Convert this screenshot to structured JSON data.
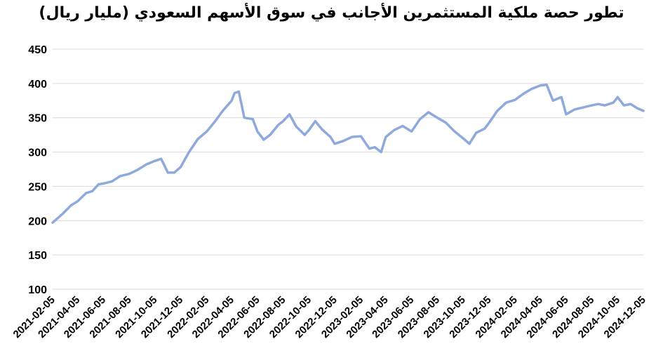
{
  "chart_data": {
    "type": "line",
    "title": "تطور حصة ملكية المستثمرين الأجانب في سوق الأسهم السعودي (مليار ريال)",
    "xlabel": "",
    "ylabel": "",
    "ylim": [
      100,
      450
    ],
    "yticks": [
      100,
      150,
      200,
      250,
      300,
      350,
      400,
      450
    ],
    "xticks": [
      "2021-02-05",
      "2021-04-05",
      "2021-06-05",
      "2021-08-05",
      "2021-10-05",
      "2021-12-05",
      "2022-02-05",
      "2022-04-05",
      "2022-06-05",
      "2022-08-05",
      "2022-10-05",
      "2022-12-05",
      "2023-02-05",
      "2023-04-05",
      "2023-06-05",
      "2023-08-05",
      "2023-10-05",
      "2023-12-05",
      "2024-02-05",
      "2024-04-05",
      "2024-06-05",
      "2024-08-05",
      "2024-10-05",
      "2024-12-05"
    ],
    "grid": true,
    "line_color": "#8EA9DB",
    "series": [
      {
        "x": [
          "2021-02-05",
          "2021-03-01",
          "2021-03-20",
          "2021-04-05",
          "2021-04-25",
          "2021-05-10",
          "2021-05-25",
          "2021-06-05",
          "2021-06-25",
          "2021-07-15",
          "2021-08-05",
          "2021-08-25",
          "2021-09-15",
          "2021-10-05",
          "2021-10-20",
          "2021-11-05",
          "2021-11-20",
          "2021-12-05",
          "2021-12-25",
          "2022-01-15",
          "2022-02-05",
          "2022-02-25",
          "2022-03-15",
          "2022-04-05",
          "2022-04-12",
          "2022-04-22",
          "2022-05-05",
          "2022-05-25",
          "2022-06-05",
          "2022-06-20",
          "2022-07-05",
          "2022-07-25",
          "2022-08-05",
          "2022-08-20",
          "2022-09-05",
          "2022-09-25",
          "2022-10-05",
          "2022-10-20",
          "2022-11-05",
          "2022-11-25",
          "2022-12-05",
          "2022-12-25",
          "2023-01-15",
          "2023-02-05",
          "2023-02-25",
          "2023-03-10",
          "2023-03-25",
          "2023-04-05",
          "2023-04-25",
          "2023-05-15",
          "2023-06-05",
          "2023-06-25",
          "2023-07-15",
          "2023-08-05",
          "2023-08-25",
          "2023-09-15",
          "2023-10-05",
          "2023-10-20",
          "2023-11-05",
          "2023-11-25",
          "2023-12-05",
          "2023-12-25",
          "2024-01-15",
          "2024-02-05",
          "2024-02-25",
          "2024-03-15",
          "2024-04-05",
          "2024-04-20",
          "2024-05-05",
          "2024-05-25",
          "2024-06-05",
          "2024-06-25",
          "2024-07-15",
          "2024-08-05",
          "2024-08-20",
          "2024-09-05",
          "2024-09-25",
          "2024-10-05",
          "2024-10-20",
          "2024-11-05",
          "2024-11-20",
          "2024-12-05"
        ],
        "values": [
          197,
          210,
          222,
          228,
          240,
          243,
          253,
          254,
          257,
          265,
          268,
          274,
          282,
          287,
          290,
          270,
          270,
          278,
          300,
          319,
          330,
          345,
          360,
          375,
          386,
          388,
          350,
          348,
          330,
          318,
          325,
          340,
          345,
          355,
          337,
          325,
          332,
          345,
          333,
          322,
          312,
          316,
          322,
          323,
          305,
          307,
          300,
          322,
          332,
          338,
          330,
          348,
          358,
          350,
          343,
          330,
          320,
          312,
          328,
          334,
          342,
          360,
          372,
          376,
          385,
          392,
          397,
          398,
          375,
          380,
          355,
          362,
          365,
          368,
          370,
          368,
          372,
          380,
          368,
          370,
          364,
          360
        ]
      }
    ]
  }
}
